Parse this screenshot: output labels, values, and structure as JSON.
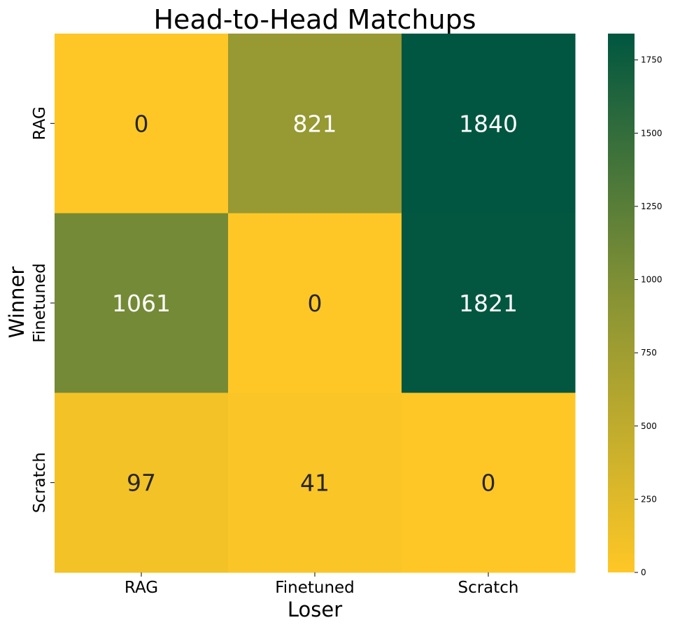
{
  "chart_data": {
    "type": "heatmap",
    "title": "Head-to-Head Matchups",
    "xlabel": "Loser",
    "ylabel": "Winner",
    "x_categories": [
      "RAG",
      "Finetuned",
      "Scratch"
    ],
    "y_categories": [
      "RAG",
      "Finetuned",
      "Scratch"
    ],
    "values": [
      [
        0,
        821,
        1840
      ],
      [
        1061,
        0,
        1821
      ],
      [
        97,
        41,
        0
      ]
    ],
    "colorbar": {
      "range": [
        0,
        1840
      ],
      "ticks": [
        0,
        250,
        500,
        750,
        1000,
        1250,
        1500,
        1750
      ],
      "colors": [
        "#FFC726",
        "#8A9434",
        "#005640"
      ]
    }
  }
}
